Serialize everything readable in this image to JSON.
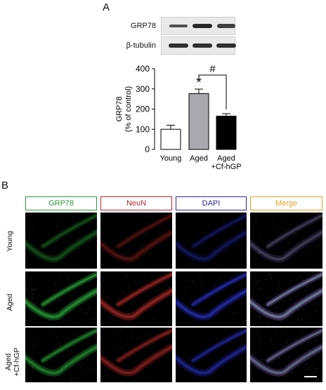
{
  "panel_a": {
    "letter": "A",
    "blot": {
      "rows": [
        {
          "label": "GRP78",
          "bands": [
            0.55,
            0.9,
            0.7
          ]
        },
        {
          "label": "β-tubulin",
          "bands": [
            0.85,
            0.85,
            0.85
          ]
        }
      ]
    },
    "significance": {
      "star": "*",
      "hash": "#"
    }
  },
  "chart_data": {
    "type": "bar",
    "categories": [
      "Young",
      "Aged",
      "Aged\n+Cf-hGP"
    ],
    "values": [
      100,
      277,
      165
    ],
    "errors": [
      20,
      22,
      12
    ],
    "colors": [
      "#ffffff",
      "#a8a8b0",
      "#000000"
    ],
    "ylabel": "GRP78\n(% of control)",
    "ylim": [
      0,
      400
    ],
    "yticks": [
      0,
      100,
      200,
      300,
      400
    ],
    "grid": false
  },
  "panel_b": {
    "letter": "B",
    "columns": [
      {
        "label": "GRP78",
        "color": "#2e9a3c"
      },
      {
        "label": "NeuN",
        "color": "#b02a2a"
      },
      {
        "label": "DAPI",
        "color": "#2a2a9a"
      },
      {
        "label": "Merge",
        "color": "#e0a020"
      }
    ],
    "rows": [
      "Young",
      "Aged",
      "Aged\n+Cf-hGP"
    ],
    "scale_bar": true
  }
}
